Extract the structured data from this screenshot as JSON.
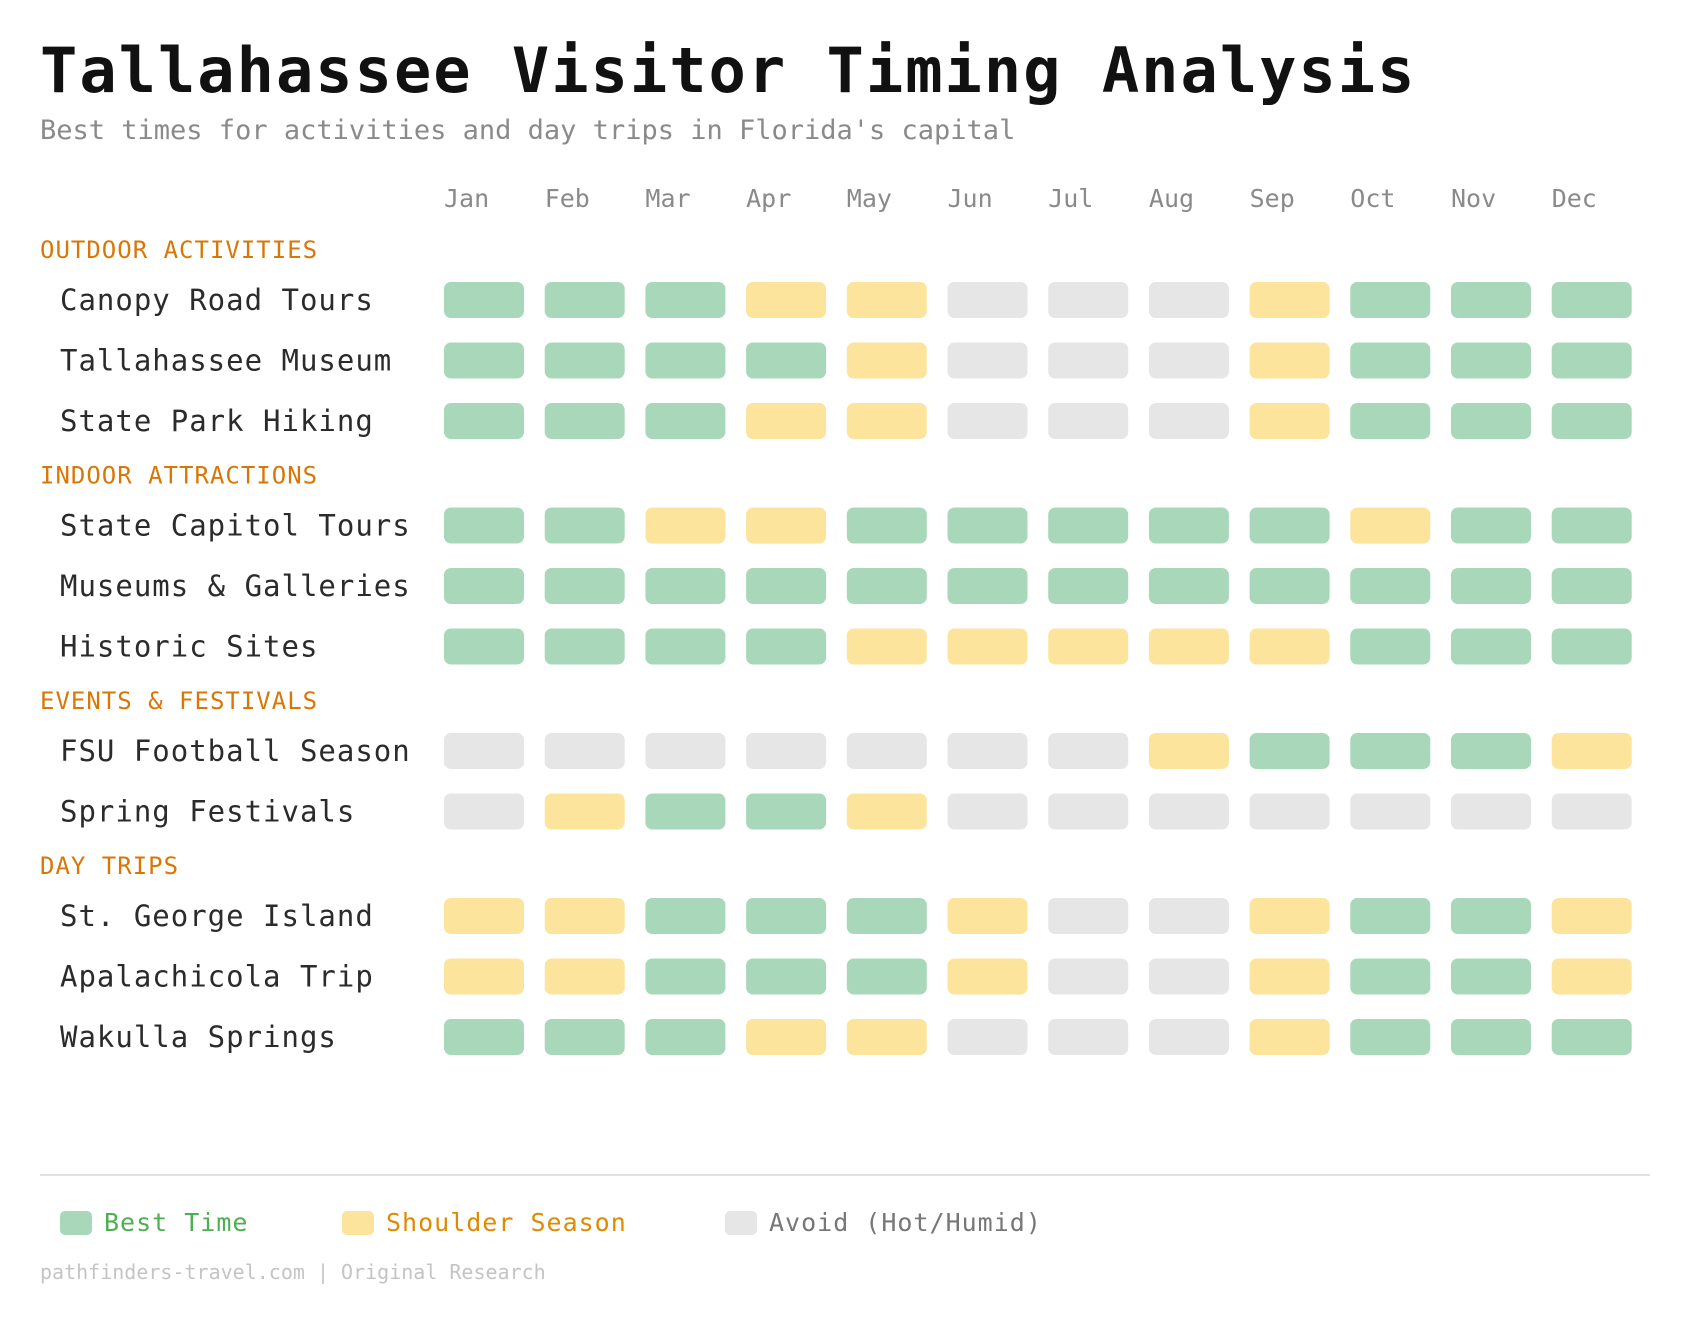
{
  "header": {
    "title": "Tallahassee Visitor Timing Analysis",
    "subtitle": "Best times for activities and day trips in Florida's capital"
  },
  "colors": {
    "best": "#a8d8b9",
    "shoulder": "#fce49c",
    "avoid": "#e6e6e6",
    "section": "#d97706",
    "best_text": "#4caf50",
    "shoulder_text": "#e08a00",
    "avoid_text": "#777777"
  },
  "chart_data": {
    "type": "heatmap",
    "months": [
      "Jan",
      "Feb",
      "Mar",
      "Apr",
      "May",
      "Jun",
      "Jul",
      "Aug",
      "Sep",
      "Oct",
      "Nov",
      "Dec"
    ],
    "sections": [
      {
        "name": "OUTDOOR ACTIVITIES",
        "rows": [
          {
            "label": "Canopy Road Tours",
            "values": [
              "best",
              "best",
              "best",
              "shoulder",
              "shoulder",
              "avoid",
              "avoid",
              "avoid",
              "shoulder",
              "best",
              "best",
              "best"
            ]
          },
          {
            "label": "Tallahassee Museum",
            "values": [
              "best",
              "best",
              "best",
              "best",
              "shoulder",
              "avoid",
              "avoid",
              "avoid",
              "shoulder",
              "best",
              "best",
              "best"
            ]
          },
          {
            "label": "State Park Hiking",
            "values": [
              "best",
              "best",
              "best",
              "shoulder",
              "shoulder",
              "avoid",
              "avoid",
              "avoid",
              "shoulder",
              "best",
              "best",
              "best"
            ]
          }
        ]
      },
      {
        "name": "INDOOR ATTRACTIONS",
        "rows": [
          {
            "label": "State Capitol Tours",
            "values": [
              "best",
              "best",
              "shoulder",
              "shoulder",
              "best",
              "best",
              "best",
              "best",
              "best",
              "shoulder",
              "best",
              "best"
            ]
          },
          {
            "label": "Museums & Galleries",
            "values": [
              "best",
              "best",
              "best",
              "best",
              "best",
              "best",
              "best",
              "best",
              "best",
              "best",
              "best",
              "best"
            ]
          },
          {
            "label": "Historic Sites",
            "values": [
              "best",
              "best",
              "best",
              "best",
              "shoulder",
              "shoulder",
              "shoulder",
              "shoulder",
              "shoulder",
              "best",
              "best",
              "best"
            ]
          }
        ]
      },
      {
        "name": "EVENTS & FESTIVALS",
        "rows": [
          {
            "label": "FSU Football Season",
            "values": [
              "avoid",
              "avoid",
              "avoid",
              "avoid",
              "avoid",
              "avoid",
              "avoid",
              "shoulder",
              "best",
              "best",
              "best",
              "shoulder"
            ]
          },
          {
            "label": "Spring Festivals",
            "values": [
              "avoid",
              "shoulder",
              "best",
              "best",
              "shoulder",
              "avoid",
              "avoid",
              "avoid",
              "avoid",
              "avoid",
              "avoid",
              "avoid"
            ]
          }
        ]
      },
      {
        "name": "DAY TRIPS",
        "rows": [
          {
            "label": "St. George Island",
            "values": [
              "shoulder",
              "shoulder",
              "best",
              "best",
              "best",
              "shoulder",
              "avoid",
              "avoid",
              "shoulder",
              "best",
              "best",
              "shoulder"
            ]
          },
          {
            "label": "Apalachicola Trip",
            "values": [
              "shoulder",
              "shoulder",
              "best",
              "best",
              "best",
              "shoulder",
              "avoid",
              "avoid",
              "shoulder",
              "best",
              "best",
              "shoulder"
            ]
          },
          {
            "label": "Wakulla Springs",
            "values": [
              "best",
              "best",
              "best",
              "shoulder",
              "shoulder",
              "avoid",
              "avoid",
              "avoid",
              "shoulder",
              "best",
              "best",
              "best"
            ]
          }
        ]
      }
    ]
  },
  "legend": {
    "best_label": "Best Time",
    "shoulder_label": "Shoulder Season",
    "avoid_label": "Avoid (Hot/Humid)"
  },
  "footer": {
    "text": "pathfinders-travel.com | Original Research"
  }
}
